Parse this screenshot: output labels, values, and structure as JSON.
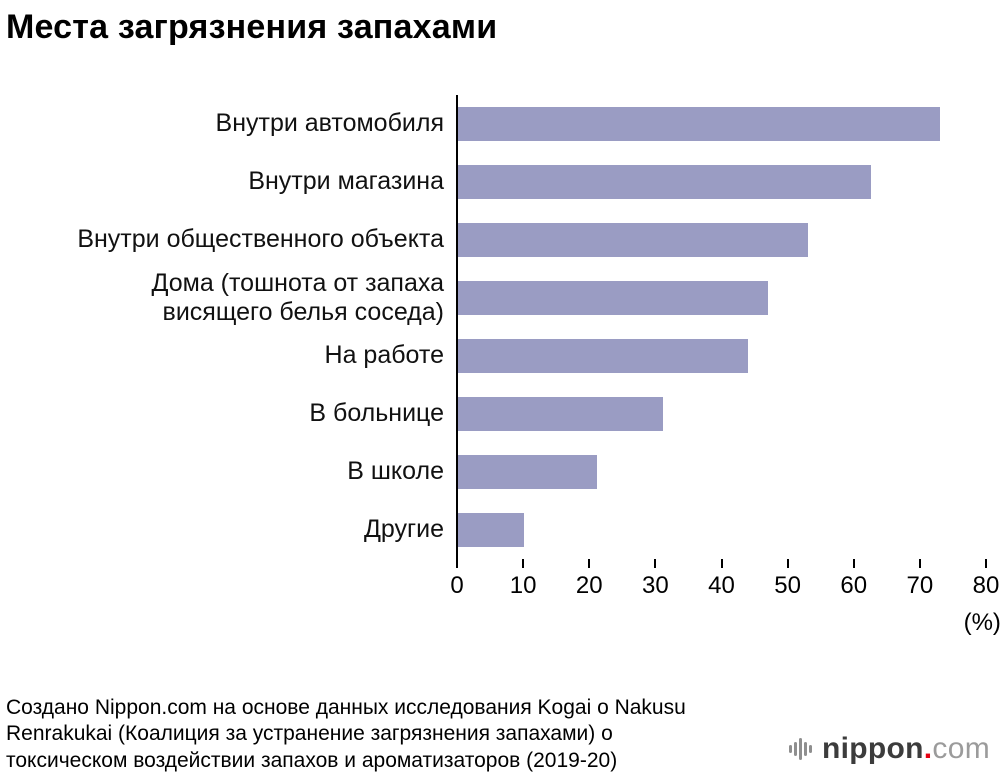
{
  "title": "Места загрязнения запахами",
  "chart_data": {
    "type": "bar",
    "orientation": "horizontal",
    "categories": [
      "Внутри автомобиля",
      "Внутри магазина",
      "Внутри общественного объекта",
      "Дома (тошнота от запаха\nвисящего белья соседа)",
      "На работе",
      "В больнице",
      "В школе",
      "Другие"
    ],
    "values": [
      73,
      62.5,
      53,
      47,
      44,
      31,
      21,
      10
    ],
    "title": "Места загрязнения запахами",
    "xlabel": "(%)",
    "ylabel": "",
    "xlim": [
      0,
      80
    ],
    "xticks": [
      0,
      10,
      20,
      30,
      40,
      50,
      60,
      70,
      80
    ],
    "grid": false,
    "legend": false,
    "bar_color": "#9a9cc3"
  },
  "axis": {
    "unit_label": "(%)"
  },
  "footer": {
    "source_text": "Создано Nippon.com на основе данных исследования Kogai o Nakusu Renrakukai (Коалиция за устранение загрязнения запахами) о токсическом воздействии запахов и ароматизаторов (2019-20)"
  },
  "logo": {
    "icon": "sound-waves-icon",
    "name": "nippon",
    "dot": ".",
    "tld": "com",
    "dot_color": "#e60012"
  }
}
